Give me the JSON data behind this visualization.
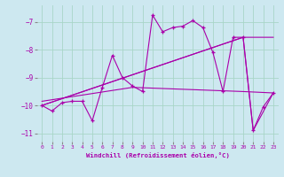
{
  "xlabel": "Windchill (Refroidissement éolien,°C)",
  "bg_color": "#cde8f0",
  "grid_color": "#a8d5c8",
  "line_color": "#aa00aa",
  "xlim": [
    -0.5,
    23.5
  ],
  "ylim": [
    -11.3,
    -6.4
  ],
  "yticks": [
    -11,
    -10,
    -9,
    -8,
    -7
  ],
  "xticks": [
    0,
    1,
    2,
    3,
    4,
    5,
    6,
    7,
    8,
    9,
    10,
    11,
    12,
    13,
    14,
    15,
    16,
    17,
    18,
    19,
    20,
    21,
    22,
    23
  ],
  "series_main": [
    [
      0,
      -10.0
    ],
    [
      1,
      -10.2
    ],
    [
      2,
      -9.9
    ],
    [
      3,
      -9.85
    ],
    [
      4,
      -9.85
    ],
    [
      5,
      -10.55
    ],
    [
      6,
      -9.35
    ],
    [
      7,
      -8.2
    ],
    [
      8,
      -9.0
    ],
    [
      9,
      -9.3
    ],
    [
      10,
      -9.5
    ],
    [
      11,
      -6.75
    ],
    [
      12,
      -7.35
    ],
    [
      13,
      -7.2
    ],
    [
      14,
      -7.15
    ],
    [
      15,
      -6.95
    ],
    [
      16,
      -7.2
    ],
    [
      17,
      -8.1
    ],
    [
      18,
      -9.5
    ],
    [
      19,
      -7.55
    ],
    [
      20,
      -7.55
    ],
    [
      21,
      -10.9
    ],
    [
      22,
      -10.05
    ],
    [
      23,
      -9.55
    ]
  ],
  "series_diag1": [
    [
      0,
      -10.0
    ],
    [
      20,
      -7.55
    ],
    [
      21,
      -10.9
    ],
    [
      23,
      -9.55
    ]
  ],
  "series_diag2": [
    [
      0,
      -10.0
    ],
    [
      20,
      -7.55
    ],
    [
      23,
      -7.55
    ]
  ],
  "series_flat": [
    [
      0,
      -9.85
    ],
    [
      9,
      -9.35
    ],
    [
      20,
      -9.5
    ],
    [
      23,
      -9.55
    ]
  ]
}
